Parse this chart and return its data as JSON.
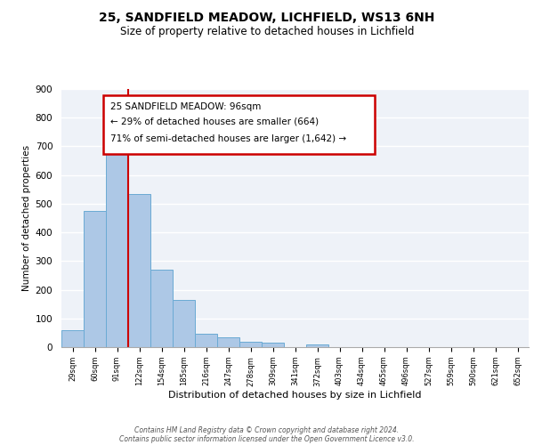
{
  "title": "25, SANDFIELD MEADOW, LICHFIELD, WS13 6NH",
  "subtitle": "Size of property relative to detached houses in Lichfield",
  "xlabel": "Distribution of detached houses by size in Lichfield",
  "ylabel": "Number of detached properties",
  "bar_labels": [
    "29sqm",
    "60sqm",
    "91sqm",
    "122sqm",
    "154sqm",
    "185sqm",
    "216sqm",
    "247sqm",
    "278sqm",
    "309sqm",
    "341sqm",
    "372sqm",
    "403sqm",
    "434sqm",
    "465sqm",
    "496sqm",
    "527sqm",
    "559sqm",
    "590sqm",
    "621sqm",
    "652sqm"
  ],
  "bar_values": [
    60,
    475,
    715,
    535,
    270,
    165,
    48,
    35,
    20,
    15,
    0,
    10,
    0,
    0,
    0,
    0,
    0,
    0,
    0,
    0,
    0
  ],
  "bar_color": "#adc8e6",
  "bar_edge_color": "#6aaad4",
  "plot_bg_color": "#eef2f8",
  "grid_color": "#ffffff",
  "red_line_color": "#cc0000",
  "annotation_box_color": "#cc0000",
  "annotation_text_line1": "25 SANDFIELD MEADOW: 96sqm",
  "annotation_text_line2": "← 29% of detached houses are smaller (664)",
  "annotation_text_line3": "71% of semi-detached houses are larger (1,642) →",
  "ylim": [
    0,
    900
  ],
  "yticks": [
    0,
    100,
    200,
    300,
    400,
    500,
    600,
    700,
    800,
    900
  ],
  "footer_line1": "Contains HM Land Registry data © Crown copyright and database right 2024.",
  "footer_line2": "Contains public sector information licensed under the Open Government Licence v3.0."
}
